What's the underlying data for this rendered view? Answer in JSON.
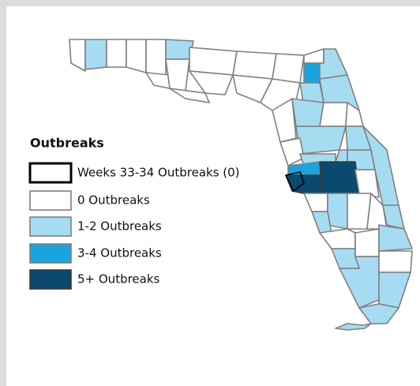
{
  "legend": {
    "title": "Outbreaks",
    "items": [
      {
        "label": "Weeks 33-34 Outbreaks (0)",
        "fill": "#ffffff",
        "stroke": "#000000"
      },
      {
        "label": "0 Outbreaks",
        "fill": "#ffffff",
        "stroke": "#7f7f7f"
      },
      {
        "label": "1-2 Outbreaks",
        "fill": "#a6dcf2",
        "stroke": "#7f7f7f"
      },
      {
        "label": "3-4 Outbreaks",
        "fill": "#1aa4df",
        "stroke": "#7f7f7f"
      },
      {
        "label": "5+ Outbreaks",
        "fill": "#0b4a6e",
        "stroke": "#3a3a3a"
      }
    ]
  }
}
